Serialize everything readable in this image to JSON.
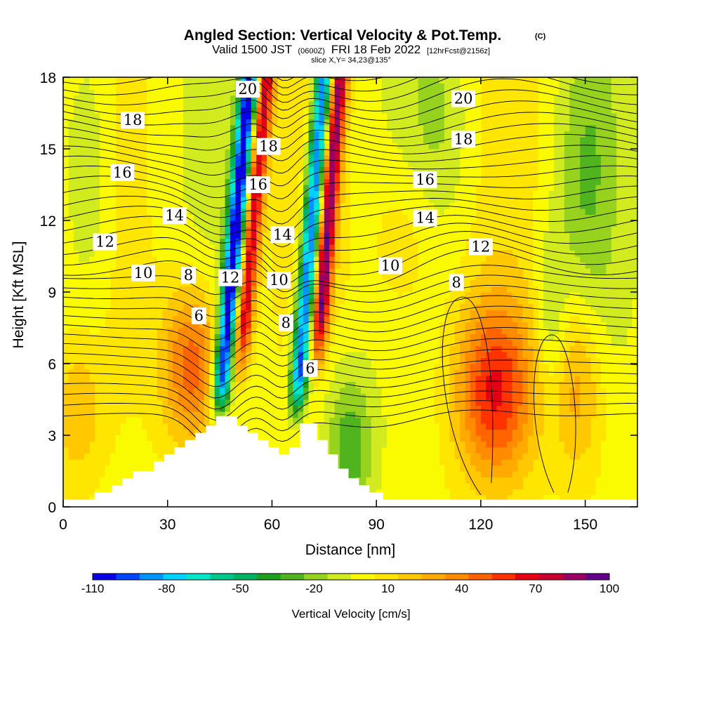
{
  "title": {
    "main": "Angled Section: Vertical Velocity & Pot.Temp.",
    "copyright": "(C)",
    "valid_prefix": "Valid 1500 JST",
    "valid_zulu": "(0600Z)",
    "valid_date": "FRI 18 Feb 2022",
    "forecast": "[12hrFcst@2156z]",
    "slice": "slice X,Y= 34,23@135°"
  },
  "chart_data": {
    "type": "heatmap",
    "xlabel": "Distance [nm]",
    "ylabel": "Height [Kft MSL]",
    "xlim": [
      0,
      165
    ],
    "ylim": [
      0,
      18
    ],
    "xticks": [
      0,
      30,
      60,
      90,
      120,
      150
    ],
    "yticks": [
      0,
      3,
      6,
      9,
      12,
      15,
      18
    ],
    "colorbar": {
      "title": "Vertical Velocity [cm/s]",
      "tick_labels": [
        "-110",
        "-80",
        "-50",
        "-20",
        "10",
        "40",
        "70",
        "100"
      ],
      "tick_values": [
        -110,
        -80,
        -50,
        -20,
        10,
        40,
        70,
        100
      ],
      "levels": [
        -110,
        -100,
        -90,
        -80,
        -70,
        -60,
        -50,
        -40,
        -30,
        -20,
        -10,
        0,
        10,
        20,
        30,
        40,
        50,
        60,
        70,
        80,
        90,
        100
      ],
      "colors": [
        "#0a00e6",
        "#0046ff",
        "#0096ff",
        "#00d2ff",
        "#00e6c8",
        "#00c88c",
        "#00b464",
        "#1ea01e",
        "#50b41e",
        "#96d21e",
        "#d2eb1e",
        "#fafa00",
        "#ffe600",
        "#ffc800",
        "#ffaa00",
        "#ff8c00",
        "#ff6400",
        "#ff3200",
        "#e60014",
        "#c80032",
        "#9b0064",
        "#64008c"
      ]
    },
    "contours": {
      "variable": "Potential Temperature",
      "labels": [
        {
          "text": "20",
          "x": 53,
          "y": 17.5
        },
        {
          "text": "20",
          "x": 115,
          "y": 17.1
        },
        {
          "text": "18",
          "x": 20,
          "y": 16.2
        },
        {
          "text": "18",
          "x": 59,
          "y": 15.1
        },
        {
          "text": "18",
          "x": 115,
          "y": 15.4
        },
        {
          "text": "16",
          "x": 17,
          "y": 14.0
        },
        {
          "text": "16",
          "x": 56,
          "y": 13.5
        },
        {
          "text": "16",
          "x": 104,
          "y": 13.7
        },
        {
          "text": "14",
          "x": 32,
          "y": 12.2
        },
        {
          "text": "14",
          "x": 63,
          "y": 11.4
        },
        {
          "text": "14",
          "x": 104,
          "y": 12.1
        },
        {
          "text": "12",
          "x": 12,
          "y": 11.1
        },
        {
          "text": "12",
          "x": 120,
          "y": 10.9
        },
        {
          "text": "12",
          "x": 48,
          "y": 9.6
        },
        {
          "text": "10",
          "x": 23,
          "y": 9.8
        },
        {
          "text": "10",
          "x": 62,
          "y": 9.5
        },
        {
          "text": "10",
          "x": 94,
          "y": 10.1
        },
        {
          "text": "8",
          "x": 36,
          "y": 9.7
        },
        {
          "text": "8",
          "x": 64,
          "y": 7.7
        },
        {
          "text": "8",
          "x": 113,
          "y": 9.4
        },
        {
          "text": "6",
          "x": 39,
          "y": 8.0
        },
        {
          "text": "6",
          "x": 71,
          "y": 5.8
        }
      ]
    }
  }
}
